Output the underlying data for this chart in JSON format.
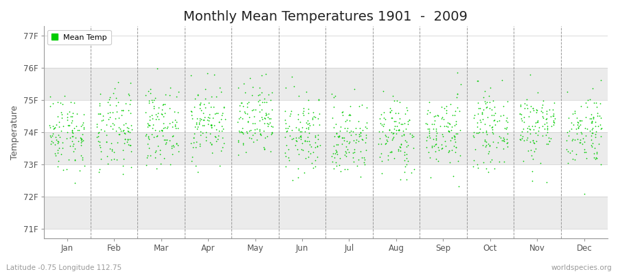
{
  "title": "Monthly Mean Temperatures 1901  -  2009",
  "ylabel": "Temperature",
  "xlabel_months": [
    "Jan",
    "Feb",
    "Mar",
    "Apr",
    "May",
    "Jun",
    "Jul",
    "Aug",
    "Sep",
    "Oct",
    "Nov",
    "Dec"
  ],
  "ytick_labels": [
    "71F",
    "72F",
    "73F",
    "74F",
    "75F",
    "76F",
    "77F"
  ],
  "ytick_values": [
    71,
    72,
    73,
    74,
    75,
    76,
    77
  ],
  "ylim": [
    70.7,
    77.3
  ],
  "dot_color": "#00cc00",
  "dot_size": 1.5,
  "background_color": "#ffffff",
  "band_colors": [
    "#ebebeb",
    "#ffffff"
  ],
  "subtitle_left": "Latitude -0.75 Longitude 112.75",
  "subtitle_right": "worldspecies.org",
  "legend_label": "Mean Temp",
  "title_fontsize": 14,
  "years": 109,
  "month_means": [
    74.0,
    74.0,
    74.2,
    74.3,
    74.3,
    73.9,
    73.8,
    73.9,
    74.0,
    74.1,
    74.2,
    74.1
  ],
  "month_stds": [
    0.6,
    0.65,
    0.58,
    0.58,
    0.6,
    0.62,
    0.6,
    0.6,
    0.58,
    0.56,
    0.58,
    0.58
  ],
  "seed": 42
}
